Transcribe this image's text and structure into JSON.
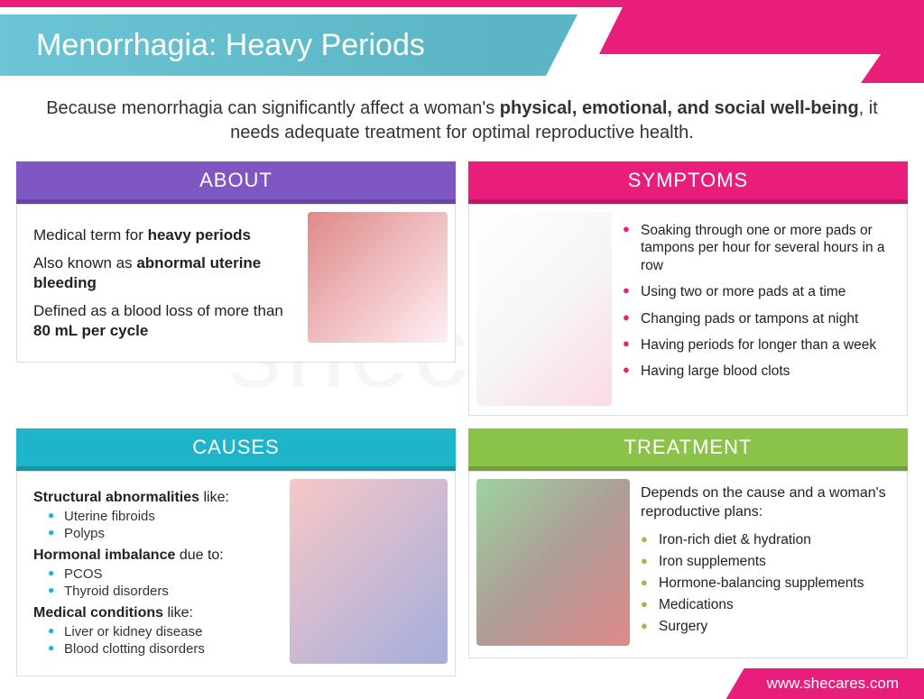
{
  "title": "Menorrhagia: Heavy Periods",
  "intro_pre": "Because menorrhagia can significantly affect a woman's ",
  "intro_bold": "physical, emotional, and social well-being",
  "intro_post": ", it needs adequate treatment for optimal reproductive health.",
  "colors": {
    "pink": "#e91e7a",
    "teal": "#6bc5d4",
    "purple": "#7e57c2",
    "cyan": "#1fb5c9",
    "green": "#8bc34a"
  },
  "panels": {
    "about": {
      "heading": "ABOUT",
      "heading_bg": "#7e57c2",
      "lines": [
        {
          "pre": "Medical term for ",
          "bold": "heavy periods",
          "post": ""
        },
        {
          "pre": "Also known as ",
          "bold": "abnormal uterine bleeding",
          "post": ""
        },
        {
          "pre": "Defined as a blood loss of more than ",
          "bold": "80 mL per cycle",
          "post": ""
        }
      ]
    },
    "causes": {
      "heading": "CAUSES",
      "heading_bg": "#1fb5c9",
      "bullet_color": "#1fb5c9",
      "groups": [
        {
          "bold": "Structural abnormalities",
          "suffix": " like:",
          "items": [
            "Uterine fibroids",
            "Polyps"
          ]
        },
        {
          "bold": "Hormonal imbalance",
          "suffix": " due to:",
          "items": [
            "PCOS",
            "Thyroid disorders"
          ]
        },
        {
          "bold": "Medical conditions",
          "suffix": " like:",
          "items": [
            "Liver or kidney disease",
            "Blood clotting disorders"
          ]
        }
      ]
    },
    "symptoms": {
      "heading": "SYMPTOMS",
      "heading_bg": "#e91e7a",
      "bullet_color": "#e91e7a",
      "items": [
        "Soaking through one or more pads or tampons per hour for several hours in a row",
        "Using two or more pads at a time",
        "Changing pads or tampons at night",
        "Having periods for longer than a week",
        "Having large blood clots"
      ]
    },
    "treatment": {
      "heading": "TREATMENT",
      "heading_bg": "#8bc34a",
      "bullet_color": "#8bc34a",
      "intro": "Depends on the cause and a woman's reproductive plans:",
      "items": [
        "Iron-rich diet & hydration",
        "Iron supplements",
        "Hormone-balancing supplements",
        "Medications",
        "Surgery"
      ]
    }
  },
  "footer": "www.shecares.com",
  "watermark": "shecares"
}
